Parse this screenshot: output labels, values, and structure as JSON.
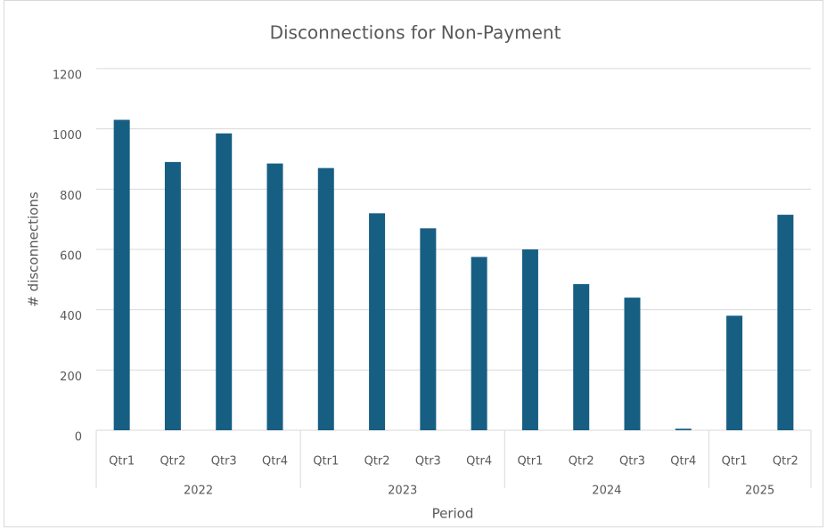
{
  "chart_data": {
    "type": "bar",
    "title": "Disconnections for Non-Payment",
    "x_label": "Period",
    "y_label": "# disconnections",
    "groups": [
      {
        "label": "2022",
        "categories": [
          "Qtr1",
          "Qtr2",
          "Qtr3",
          "Qtr4"
        ]
      },
      {
        "label": "2023",
        "categories": [
          "Qtr1",
          "Qtr2",
          "Qtr3",
          "Qtr4"
        ]
      },
      {
        "label": "2024",
        "categories": [
          "Qtr1",
          "Qtr2",
          "Qtr3",
          "Qtr4"
        ]
      },
      {
        "label": "2025",
        "categories": [
          "Qtr1",
          "Qtr2"
        ]
      }
    ],
    "values": [
      1030,
      890,
      985,
      885,
      870,
      720,
      670,
      575,
      600,
      485,
      440,
      5,
      380,
      715
    ],
    "color": "#175e83",
    "ylim": [
      0,
      1200
    ],
    "yticks": [
      0,
      200,
      400,
      600,
      800,
      1000,
      1200
    ],
    "grid": true
  }
}
